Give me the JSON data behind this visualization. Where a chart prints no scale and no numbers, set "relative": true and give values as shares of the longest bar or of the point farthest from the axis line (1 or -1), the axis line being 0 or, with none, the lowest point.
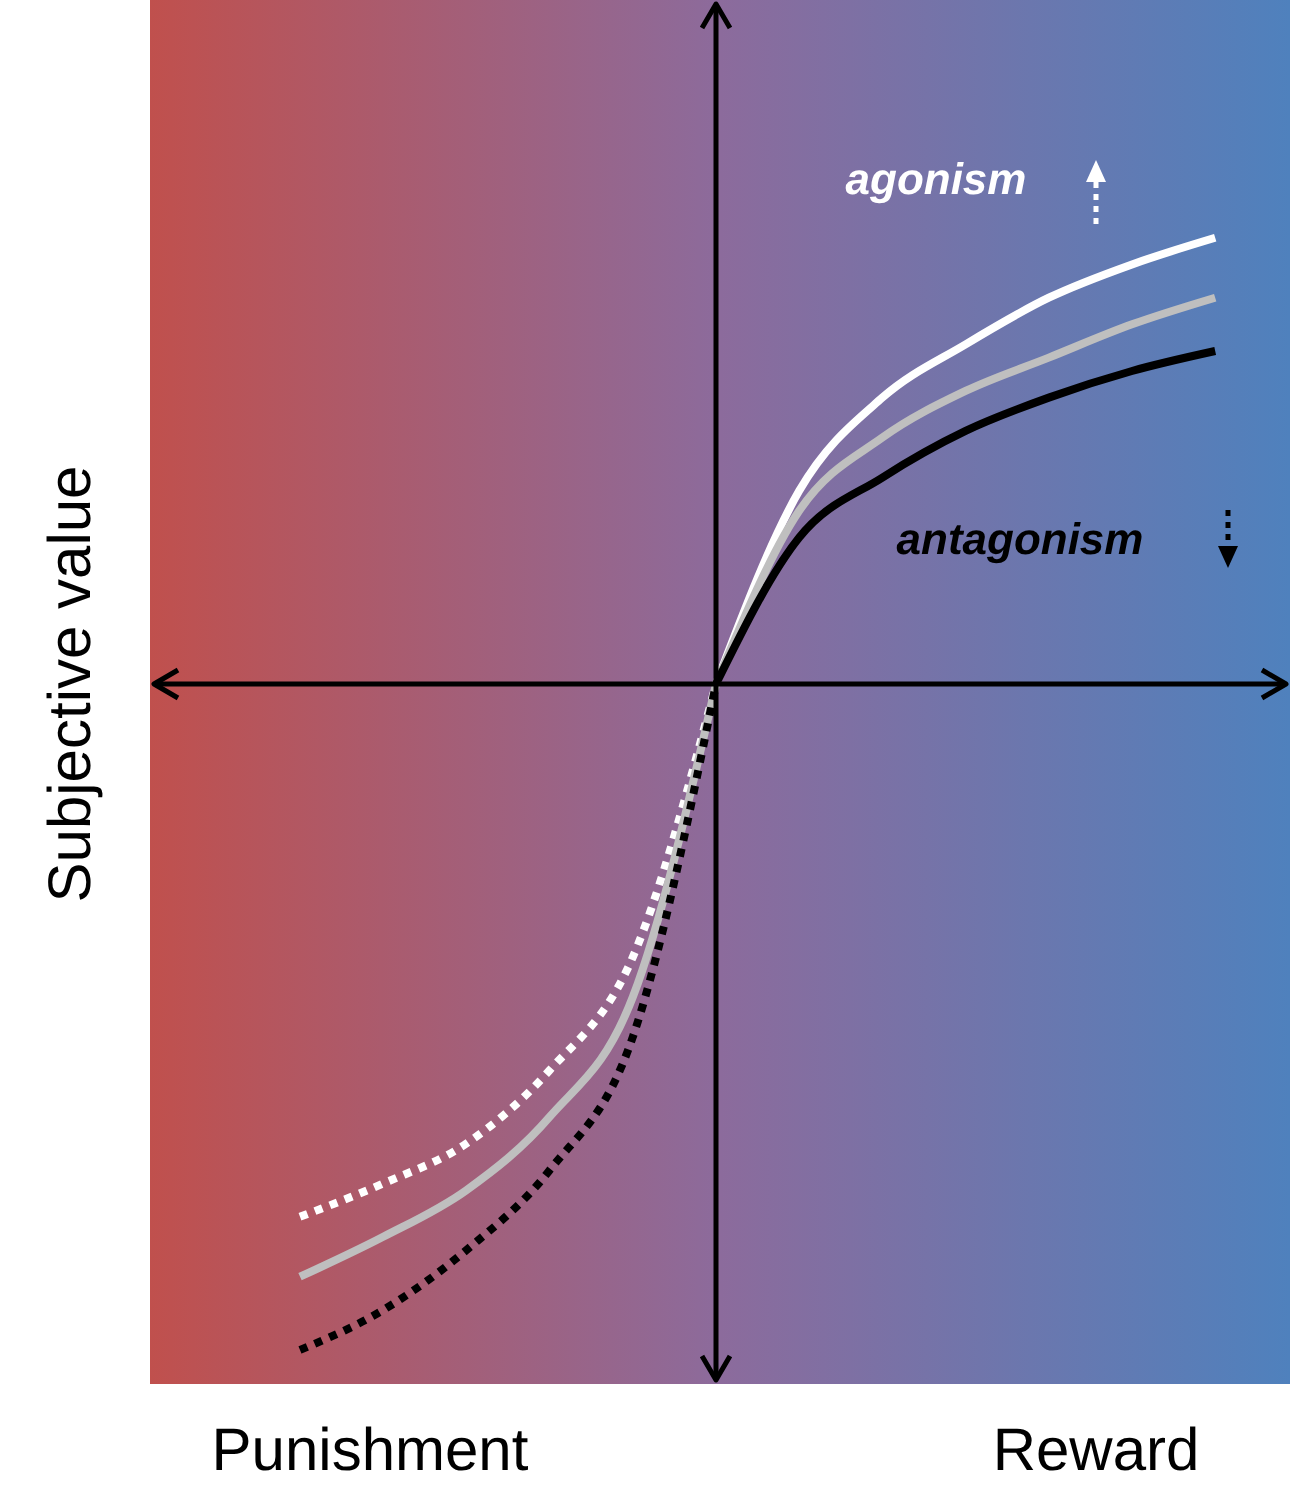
{
  "chart_data": {
    "type": "line",
    "relative": true,
    "ylabel": "Subjective value",
    "annotations": [
      "agonism",
      "antagonism",
      "Punishment",
      "Reward"
    ],
    "categories": [
      null,
      null,
      null,
      null,
      null,
      null,
      null,
      null,
      null,
      null,
      null,
      null
    ],
    "series": [
      {
        "color": "#ffffff",
        "line_style": "solid",
        "values": [
          null,
          null,
          null,
          null,
          null,
          0,
          0.29,
          0.43,
          0.51,
          0.58,
          0.63,
          0.67
        ]
      },
      {
        "color": "#bfbfbf",
        "line_style": "solid",
        "values": [
          null,
          null,
          null,
          null,
          null,
          0,
          0.26,
          0.37,
          0.44,
          0.49,
          0.54,
          0.58
        ]
      },
      {
        "color": "#000000",
        "line_style": "solid",
        "values": [
          null,
          null,
          null,
          null,
          null,
          0,
          0.22,
          0.31,
          0.38,
          0.43,
          0.47,
          0.5
        ]
      },
      {
        "color": "#ffffff",
        "line_style": "dotted",
        "values": [
          -0.8,
          -0.75,
          -0.69,
          -0.58,
          -0.41,
          0,
          null,
          null,
          null,
          null,
          null,
          null
        ]
      },
      {
        "color": "#bfbfbf",
        "line_style": "solid",
        "values": [
          -0.89,
          -0.83,
          -0.76,
          -0.65,
          -0.47,
          0,
          null,
          null,
          null,
          null,
          null,
          null
        ]
      },
      {
        "color": "#000000",
        "line_style": "dotted",
        "values": [
          -1,
          -0.94,
          -0.85,
          -0.73,
          -0.53,
          0,
          null,
          null,
          null,
          null,
          null,
          null
        ]
      }
    ]
  }
}
